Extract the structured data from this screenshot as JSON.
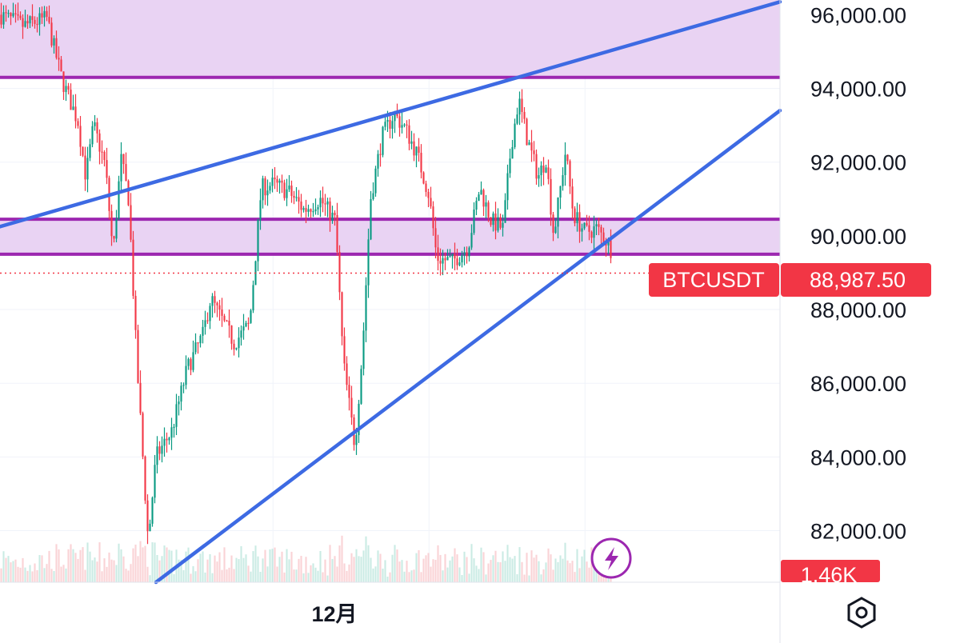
{
  "chart_data": {
    "type": "candlestick",
    "symbol": "BTCUSDT",
    "last_price": 88987.5,
    "last_price_label": "88,987.50",
    "volume_label": "1.46K",
    "x_label": "12月",
    "y_ticks": [
      {
        "value": 96000,
        "label": "96,000.00"
      },
      {
        "value": 94000,
        "label": "94,000.00"
      },
      {
        "value": 92000,
        "label": "92,000.00"
      },
      {
        "value": 90000,
        "label": "90,000.00"
      },
      {
        "value": 88000,
        "label": "88,000.00"
      },
      {
        "value": 86000,
        "label": "86,000.00"
      },
      {
        "value": 84000,
        "label": "84,000.00"
      },
      {
        "value": 82000,
        "label": "82,000.00"
      }
    ],
    "ylim": [
      80600,
      96400
    ],
    "grid": true,
    "zones": [
      {
        "from": 94300,
        "to": 96400,
        "color": "#e9d3f3",
        "edge": "#9c27b0"
      },
      {
        "from": 89500,
        "to": 90450,
        "color": "#e9d3f3",
        "edge": "#9c27b0"
      }
    ],
    "trendlines": [
      {
        "points": [
          [
            0,
            90250
          ],
          [
            1,
            96350
          ]
        ],
        "color": "#3d6ae3"
      },
      {
        "points": [
          [
            0.2,
            80600
          ],
          [
            1,
            93400
          ]
        ],
        "color": "#3d6ae3"
      }
    ],
    "price_path": [
      [
        0.0,
        96000
      ],
      [
        0.03,
        95700
      ],
      [
        0.06,
        95900
      ],
      [
        0.08,
        94200
      ],
      [
        0.1,
        93100
      ],
      [
        0.11,
        91600
      ],
      [
        0.12,
        93000
      ],
      [
        0.135,
        91900
      ],
      [
        0.145,
        89500
      ],
      [
        0.155,
        92100
      ],
      [
        0.165,
        91000
      ],
      [
        0.175,
        86700
      ],
      [
        0.19,
        81700
      ],
      [
        0.2,
        84000
      ],
      [
        0.22,
        84700
      ],
      [
        0.24,
        86400
      ],
      [
        0.26,
        87300
      ],
      [
        0.27,
        88300
      ],
      [
        0.285,
        87700
      ],
      [
        0.3,
        87100
      ],
      [
        0.32,
        87600
      ],
      [
        0.335,
        91300
      ],
      [
        0.35,
        91400
      ],
      [
        0.37,
        91200
      ],
      [
        0.39,
        90700
      ],
      [
        0.41,
        91000
      ],
      [
        0.43,
        90400
      ],
      [
        0.44,
        86600
      ],
      [
        0.455,
        84300
      ],
      [
        0.465,
        87000
      ],
      [
        0.475,
        91000
      ],
      [
        0.49,
        92700
      ],
      [
        0.505,
        93300
      ],
      [
        0.52,
        92900
      ],
      [
        0.535,
        92200
      ],
      [
        0.55,
        91100
      ],
      [
        0.56,
        89400
      ],
      [
        0.58,
        89300
      ],
      [
        0.6,
        89700
      ],
      [
        0.615,
        91300
      ],
      [
        0.63,
        90400
      ],
      [
        0.645,
        90200
      ],
      [
        0.655,
        92400
      ],
      [
        0.665,
        93700
      ],
      [
        0.675,
        92700
      ],
      [
        0.69,
        91600
      ],
      [
        0.7,
        92100
      ],
      [
        0.71,
        90000
      ],
      [
        0.725,
        92300
      ],
      [
        0.735,
        90600
      ],
      [
        0.75,
        90100
      ],
      [
        0.765,
        90200
      ],
      [
        0.78,
        89800
      ],
      [
        0.79,
        89300
      ],
      [
        0.797,
        88987.5
      ]
    ]
  }
}
